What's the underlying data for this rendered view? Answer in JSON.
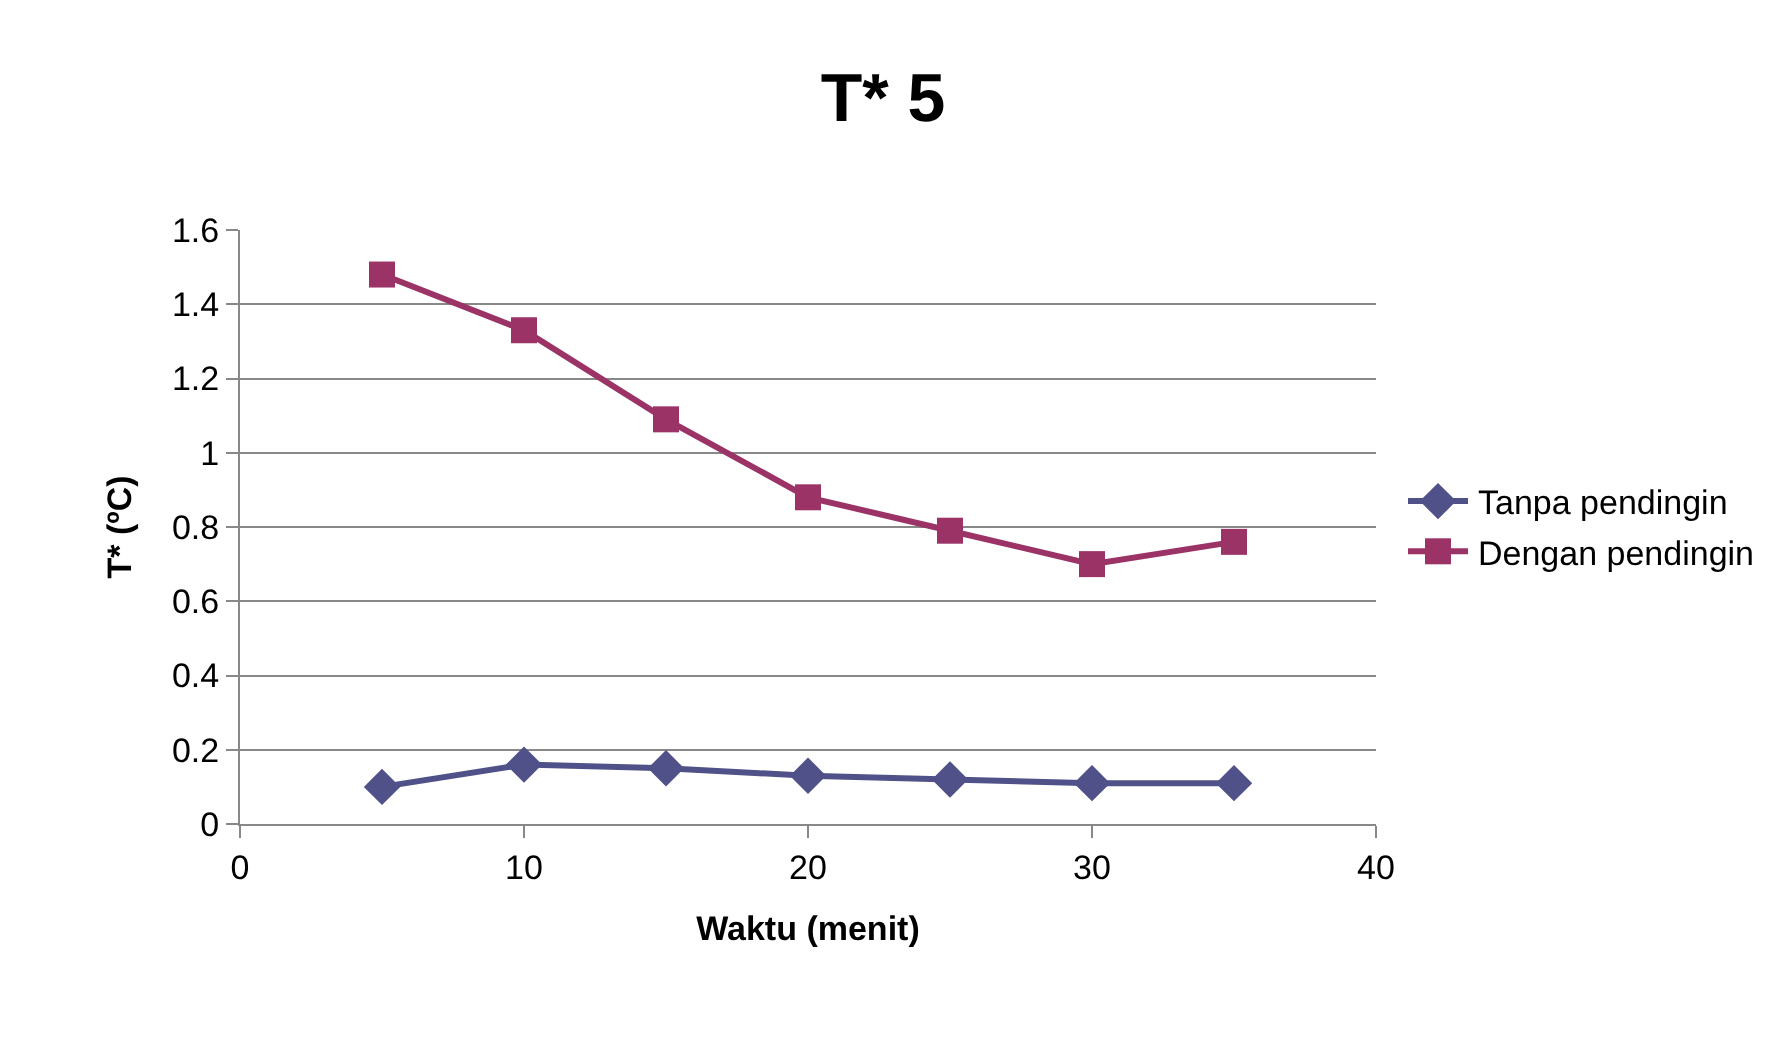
{
  "chart_data": {
    "type": "line",
    "title": "T* 5",
    "xlabel": "Waktu (menit)",
    "ylabel": "T* (ºC)",
    "x": [
      5,
      10,
      15,
      20,
      25,
      30,
      35
    ],
    "series": [
      {
        "name": "Tanpa pendingin",
        "color": "#4f5188",
        "marker": "diamond",
        "values": [
          0.1,
          0.16,
          0.15,
          0.13,
          0.12,
          0.11,
          0.11
        ]
      },
      {
        "name": "Dengan pendingin",
        "color": "#9b3366",
        "marker": "square",
        "values": [
          1.48,
          1.33,
          1.09,
          0.88,
          0.79,
          0.7,
          0.76
        ]
      }
    ],
    "xlim": [
      0,
      40
    ],
    "xticks": [
      0,
      10,
      20,
      30,
      40
    ],
    "ylim": [
      0,
      1.6
    ],
    "yticks": [
      0,
      0.2,
      0.4,
      0.6,
      0.8,
      1,
      1.2,
      1.4,
      1.6
    ],
    "grid": "y",
    "legend": "right",
    "line_style": "solid"
  }
}
